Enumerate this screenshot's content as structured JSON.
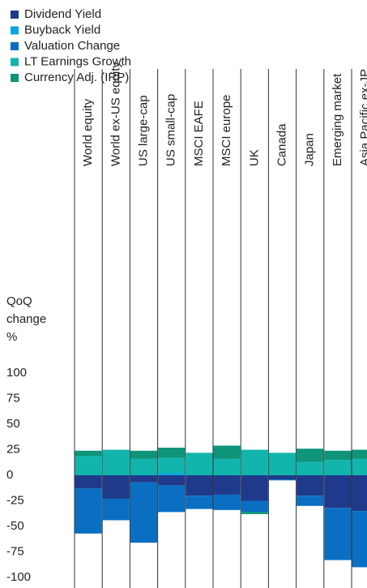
{
  "chart_data": {
    "type": "bar",
    "stacked": true,
    "y_label_lines": [
      "QoQ",
      "change",
      "%"
    ],
    "categories": [
      "World equity",
      "World ex-US equity",
      "US large-cap",
      "US small-cap",
      "MSCI EAFE",
      "MSCI europe",
      "UK",
      "Canada",
      "Japan",
      "Emerging market",
      "Asia Pacific ex-JP"
    ],
    "series": [
      {
        "name": "Dividend Yield",
        "color": "#1f3a8a",
        "values": [
          -13,
          -23,
          -7,
          -10,
          -20,
          -19,
          -25,
          -4,
          -20,
          -32,
          -35
        ]
      },
      {
        "name": "Buyback Yield",
        "color": "#0aa5e0",
        "values": [
          0,
          0,
          0,
          2,
          0,
          0,
          0,
          0,
          0,
          0,
          0
        ]
      },
      {
        "name": "Valuation Change",
        "color": "#0a6fc2",
        "values": [
          -44,
          -21,
          -59,
          -26,
          -13,
          -15,
          -11,
          -1,
          -10,
          -51,
          -55
        ]
      },
      {
        "name": "LT Earnings Growth",
        "color": "#12b5ac",
        "values": [
          19,
          25,
          16,
          15,
          22,
          16,
          25,
          22,
          13,
          15,
          16
        ]
      },
      {
        "name": "Currency Adj. (IRP)",
        "color": "#0d9479",
        "values": [
          5,
          0,
          8,
          10,
          0,
          13,
          -2,
          0,
          13,
          9,
          9
        ]
      }
    ],
    "ylim": [
      -100,
      100
    ],
    "yticks": [
      100,
      75,
      50,
      25,
      0,
      -25,
      -50,
      -75,
      -100
    ]
  }
}
